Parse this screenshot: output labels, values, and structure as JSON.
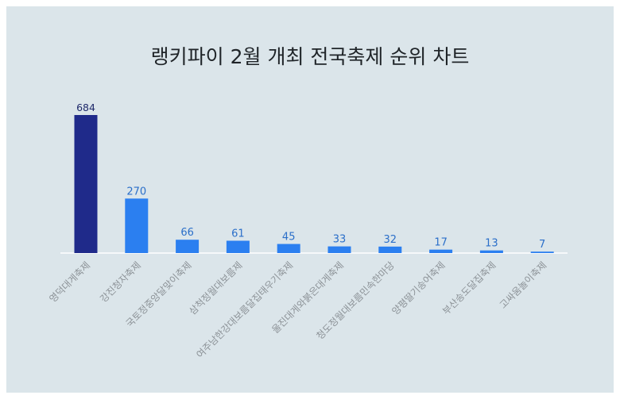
{
  "chart_data": {
    "type": "bar",
    "title": "랭키파이 2월 개최 전국축제 순위 차트",
    "categories": [
      "영덕대게축제",
      "강진청자축제",
      "국토정중앙달맞이축제",
      "삼척정월대보름제",
      "여주남한강대보름달집태우기축제",
      "울진대게와붉은대게축제",
      "청도정월대보름민속한마당",
      "양평딸기송어축제",
      "부산송도달집축제",
      "고싸움놀이축제"
    ],
    "values": [
      684,
      270,
      66,
      61,
      45,
      33,
      32,
      17,
      13,
      7
    ],
    "colors": {
      "highlight": "#1f2a8a",
      "bar": "#2b7ff0",
      "highlight_label": "#1f2a6b",
      "label": "#2b6fc9",
      "axis": "#ffffff",
      "category_text": "#8c9297"
    },
    "grid": false,
    "legend": "none"
  }
}
